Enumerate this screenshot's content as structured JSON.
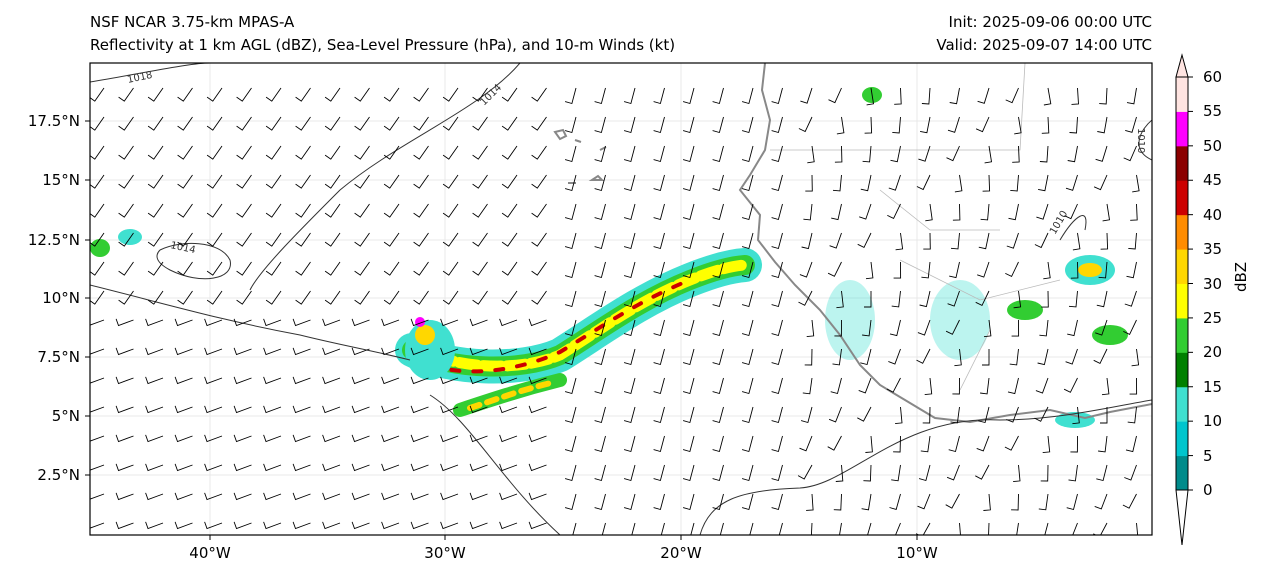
{
  "header": {
    "title_left_1": "NSF NCAR 3.75-km MPAS-A",
    "title_left_2": "Reflectivity at 1 km AGL (dBZ), Sea-Level Pressure (hPa), and 10-m Winds (kt)",
    "title_right_1": "Init: 2025-09-06 00:00 UTC",
    "title_right_2": "Valid: 2025-09-07 14:00 UTC"
  },
  "map": {
    "lat_ticks": [
      "17.5°N",
      "15°N",
      "12.5°N",
      "10°N",
      "7.5°N",
      "5°N",
      "2.5°N"
    ],
    "lon_ticks": [
      "40°W",
      "30°W",
      "20°W",
      "10°W"
    ],
    "isobar_labels": [
      "1018",
      "1014",
      "1014",
      "1010",
      "1010"
    ]
  },
  "colorbar": {
    "label": "dBZ",
    "ticks": [
      "60",
      "55",
      "50",
      "45",
      "40",
      "35",
      "30",
      "25",
      "20",
      "15",
      "10",
      "5",
      "0"
    ],
    "colors": [
      "#008b8b",
      "#00c5cd",
      "#40e0d0",
      "#008000",
      "#32cd32",
      "#ffff00",
      "#ffd700",
      "#ff8c00",
      "#cc0000",
      "#8b0000",
      "#ff00ff",
      "#ffe4e1"
    ]
  }
}
